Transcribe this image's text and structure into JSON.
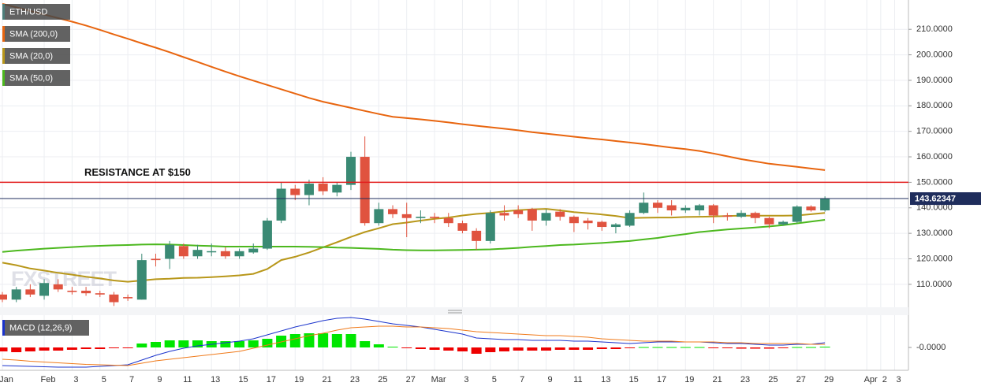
{
  "chart_data": [
    {
      "type": "candlestick",
      "watermark": "FXSTREET",
      "categories": [
        "Jan",
        null,
        null,
        "Feb",
        null,
        "3",
        null,
        "5",
        null,
        "7",
        null,
        "9",
        null,
        "11",
        null,
        "13",
        null,
        "15",
        null,
        "17",
        null,
        "19",
        null,
        "21",
        null,
        "23",
        null,
        "25",
        null,
        "27",
        null,
        "Mar",
        null,
        "3",
        null,
        "5",
        null,
        "7",
        null,
        "9",
        null,
        "11",
        null,
        "13",
        null,
        "15",
        null,
        "17",
        null,
        "19",
        null,
        "21",
        null,
        "23",
        null,
        "25",
        null,
        "27",
        null,
        "29",
        null,
        null,
        "Apr",
        "2",
        "3"
      ],
      "ohlc": {
        "name": "ETH/USD",
        "color": "#4d7e7a",
        "up_color": "#3a8a74",
        "down_color": "#e0533f",
        "open": [
          106,
          104,
          108,
          105.5,
          110,
          107.5,
          107.5,
          106.5,
          106,
          105,
          104,
          120,
          120,
          125,
          121,
          123,
          123,
          121,
          122.5,
          124,
          135,
          147.5,
          145,
          149.5,
          146,
          149,
          160,
          134,
          139.5,
          137.5,
          136,
          136.5,
          136,
          134,
          131,
          127,
          138,
          139,
          139.5,
          135,
          138.5,
          136.5,
          135,
          134.5,
          132.5,
          133,
          138,
          142,
          141,
          139,
          139,
          141,
          137,
          136.5,
          138,
          136,
          133.5,
          134.5,
          140.5,
          139,
          null,
          null,
          null,
          null,
          null
        ],
        "high": [
          107,
          109,
          110,
          112,
          112,
          109,
          109,
          107.5,
          107,
          106,
          122,
          122,
          127,
          126,
          125.5,
          126,
          124.5,
          124,
          126,
          136,
          150,
          149,
          151,
          152,
          150,
          162,
          168,
          142,
          141,
          142,
          139,
          138,
          138,
          135,
          132,
          139,
          141,
          141,
          140,
          139.5,
          139.5,
          137,
          136,
          135,
          134,
          139,
          146,
          143,
          143,
          141,
          141.5,
          141.5,
          138,
          139,
          138.5,
          136.5,
          135,
          141,
          141,
          144.5,
          null,
          null,
          null,
          null,
          null
        ],
        "low": [
          103,
          103,
          105,
          104,
          107,
          106,
          105.5,
          105,
          101.5,
          103.5,
          104,
          117,
          116,
          120,
          120,
          121,
          120,
          120,
          122,
          123.5,
          134,
          143,
          141,
          145,
          144.5,
          147,
          133,
          133,
          136,
          128.5,
          134,
          134,
          132.5,
          130,
          123.5,
          126,
          135,
          136,
          131,
          133,
          135,
          130.5,
          131.5,
          131,
          130,
          132.5,
          137.5,
          138,
          137,
          138,
          137,
          134,
          135,
          136,
          134,
          132,
          133,
          134,
          138.5,
          138.5,
          null,
          null,
          null,
          null,
          null
        ],
        "close": [
          104,
          108,
          106,
          110.5,
          108,
          107,
          106.5,
          106,
          103,
          104.5,
          119.5,
          119.5,
          125.5,
          121,
          123.5,
          123,
          121,
          123,
          124,
          135,
          147.5,
          145,
          149.5,
          146.5,
          149,
          160,
          134,
          139.5,
          137.5,
          136,
          136.5,
          136,
          134,
          131,
          127,
          138,
          137,
          137.5,
          135,
          138,
          136.5,
          134,
          134,
          132.5,
          133.5,
          138,
          142,
          140,
          139,
          140,
          141,
          137,
          136.5,
          138,
          136,
          133.5,
          134.5,
          140.5,
          139,
          143.62347,
          null,
          null,
          null,
          null,
          null
        ]
      },
      "series": [
        {
          "name": "SMA (200,0)",
          "color": "#e8650f",
          "values": [
            220,
            218.6,
            217.2,
            215.8,
            214.4,
            213,
            211.5,
            209.8,
            208,
            206.3,
            204.5,
            202.8,
            201,
            199.1,
            197.2,
            195.3,
            193.4,
            191.6,
            189.9,
            188.2,
            186.5,
            184.8,
            183.1,
            181.6,
            180.4,
            179.2,
            178,
            176.8,
            175.7,
            175.2,
            174.7,
            174.1,
            173.5,
            172.8,
            172.2,
            171.6,
            171,
            170.4,
            169.7,
            169.1,
            168.5,
            167.9,
            167.3,
            166.8,
            166.2,
            165.6,
            165,
            164.3,
            163.6,
            163,
            162.3,
            161.3,
            160.2,
            159.1,
            158.2,
            157.3,
            156.7,
            156.1,
            155.4,
            154.8,
            null,
            null,
            null,
            null,
            null
          ]
        },
        {
          "name": "SMA (20,0)",
          "color": "#b8971a",
          "values": [
            118.5,
            117.5,
            116.2,
            115.4,
            114.5,
            113.8,
            113,
            112.3,
            111.5,
            111,
            111.5,
            112,
            112.2,
            112.5,
            112.6,
            112.8,
            113.1,
            113.5,
            114.1,
            116,
            119.5,
            120.8,
            122.5,
            124.5,
            126.5,
            128.6,
            130.5,
            132,
            133.6,
            134.2,
            135,
            135.7,
            136.2,
            137,
            137.6,
            138,
            138.6,
            139.1,
            139.4,
            139.6,
            139,
            138.3,
            137.9,
            137.4,
            136.8,
            136,
            136.1,
            136.2,
            136.2,
            136.4,
            136.5,
            136.6,
            136.8,
            136.9,
            136.9,
            136.9,
            136.9,
            137,
            137.5,
            138,
            null,
            null,
            null,
            null,
            null
          ]
        },
        {
          "name": "SMA (50,0)",
          "color": "#4cb81e",
          "values": [
            122.7,
            123.2,
            123.6,
            124,
            124.3,
            124.6,
            124.9,
            125.1,
            125.3,
            125.4,
            125.6,
            125.7,
            125.6,
            125.4,
            125.2,
            125,
            124.8,
            124.8,
            124.8,
            124.8,
            124.8,
            124.8,
            124.7,
            124.6,
            124.4,
            124.3,
            124.1,
            123.9,
            123.6,
            123.4,
            123.3,
            123.3,
            123.4,
            123.5,
            123.6,
            123.7,
            124,
            124.3,
            124.7,
            125,
            125.4,
            125.6,
            125.9,
            126.2,
            126.6,
            127,
            127.6,
            128.2,
            129,
            129.7,
            130.5,
            131,
            131.5,
            131.9,
            132.3,
            132.7,
            133.2,
            133.9,
            134.6,
            135.3,
            null,
            null,
            null,
            null,
            null
          ]
        }
      ],
      "hlines": [
        {
          "value": 150,
          "label": "RESISTANCE AT $150",
          "color": "#e31d1d"
        }
      ],
      "ylim": [
        101,
        221.5
      ],
      "yticks": [
        {
          "value": 110,
          "label": "110.0000"
        },
        {
          "value": 120,
          "label": "120.0000"
        },
        {
          "value": 130,
          "label": "130.0000"
        },
        {
          "value": 140,
          "label": "140.0000"
        },
        {
          "value": 150,
          "label": "150.0000"
        },
        {
          "value": 160,
          "label": "160.0000"
        },
        {
          "value": 170,
          "label": "170.0000"
        },
        {
          "value": 180,
          "label": "180.0000"
        },
        {
          "value": 190,
          "label": "190.0000"
        },
        {
          "value": 200,
          "label": "200.0000"
        },
        {
          "value": 210,
          "label": "210.0000"
        }
      ],
      "last_price_color": "#1f2d5c",
      "grid": true
    },
    {
      "type": "macd",
      "title": "MACD (12,26,9)",
      "color": "#1a33cc",
      "histogram": {
        "up_color": "#00e600",
        "down_color": "#ee0000",
        "values": [
          -0.5,
          -0.6,
          -0.5,
          -0.4,
          -0.4,
          -0.3,
          -0.2,
          -0.2,
          -0.1,
          -0.05,
          0.5,
          0.7,
          0.9,
          0.9,
          0.9,
          0.8,
          0.8,
          0.8,
          0.9,
          1.1,
          1.5,
          1.7,
          1.8,
          1.8,
          1.7,
          1.7,
          0.8,
          0.4,
          0.1,
          -0.1,
          -0.2,
          -0.3,
          -0.4,
          -0.5,
          -0.8,
          -0.6,
          -0.5,
          -0.4,
          -0.4,
          -0.4,
          -0.3,
          -0.3,
          -0.3,
          -0.2,
          -0.2,
          -0.1,
          0.05,
          0.05,
          0.05,
          0.05,
          0.05,
          -0.1,
          -0.1,
          -0.15,
          -0.15,
          -0.15,
          -0.1,
          0.05,
          0.05,
          0.1,
          null,
          null,
          null,
          null,
          null
        ]
      },
      "series": [
        {
          "color": "#1a33cc",
          "values": [
            -2.3,
            -2.35,
            -2.4,
            -2.45,
            -2.5,
            -2.5,
            -2.5,
            -2.4,
            -2.3,
            -2.2,
            -1.6,
            -1,
            -0.5,
            -0.1,
            0.2,
            0.4,
            0.6,
            0.8,
            1.1,
            1.6,
            2.1,
            2.6,
            3,
            3.4,
            3.7,
            3.8,
            3.6,
            3.3,
            3,
            2.8,
            2.6,
            2.3,
            2,
            1.7,
            1.2,
            1.1,
            1,
            1,
            0.9,
            0.9,
            0.9,
            0.8,
            0.8,
            0.7,
            0.6,
            0.5,
            0.6,
            0.7,
            0.7,
            0.7,
            0.7,
            0.6,
            0.5,
            0.5,
            0.4,
            0.3,
            0.3,
            0.4,
            0.4,
            0.6,
            null,
            null,
            null,
            null,
            null
          ]
        },
        {
          "color": "#f07a1a",
          "values": [
            -1.5,
            -1.6,
            -1.75,
            -1.85,
            -1.95,
            -2.05,
            -2.15,
            -2.2,
            -2.25,
            -2.3,
            -2,
            -1.7,
            -1.5,
            -1.3,
            -1.1,
            -0.9,
            -0.7,
            -0.5,
            -0.1,
            0.3,
            0.7,
            1.1,
            1.5,
            1.8,
            2.2,
            2.5,
            2.6,
            2.7,
            2.7,
            2.6,
            2.6,
            2.5,
            2.4,
            2.2,
            2,
            1.9,
            1.8,
            1.7,
            1.6,
            1.5,
            1.5,
            1.4,
            1.3,
            1.1,
            1,
            0.9,
            0.8,
            0.8,
            0.8,
            0.7,
            0.7,
            0.7,
            0.6,
            0.6,
            0.5,
            0.5,
            0.5,
            0.5,
            0.4,
            0.4,
            null,
            null,
            null,
            null,
            null
          ]
        }
      ],
      "ylim": [
        -2.9,
        4.1
      ],
      "yticks": [
        {
          "value": 0,
          "label": "-0.0000"
        }
      ]
    }
  ]
}
